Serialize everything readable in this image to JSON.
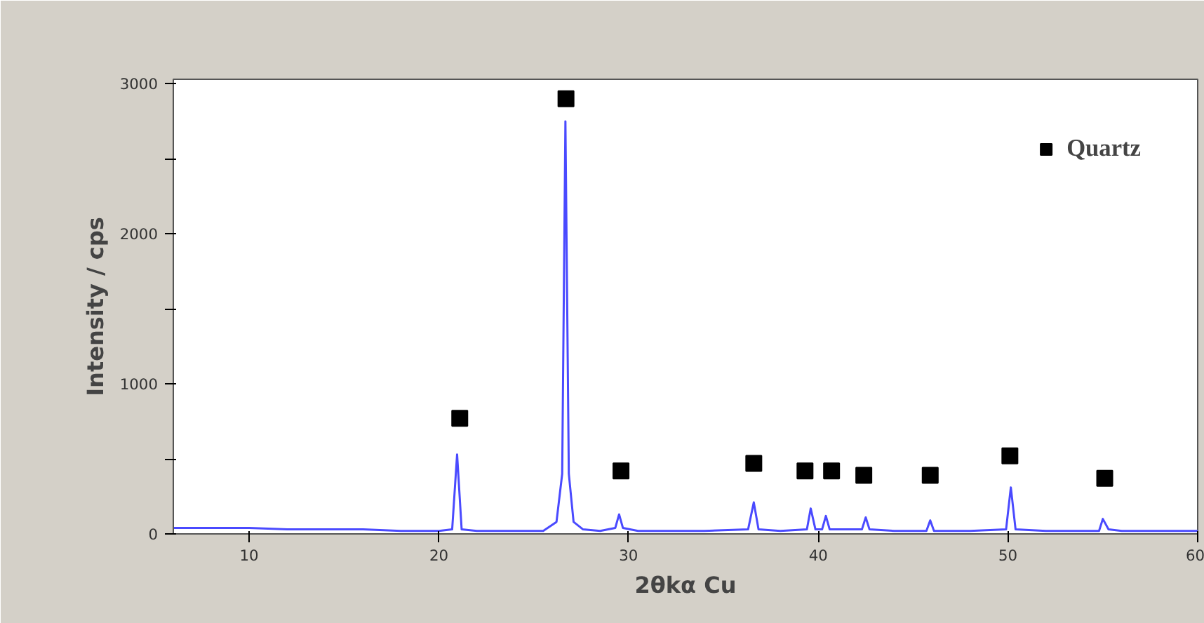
{
  "chart_data": {
    "type": "line",
    "xlabel": "2θkα Cu",
    "ylabel": "Intensity / cps",
    "xlim": [
      6,
      60
    ],
    "ylim": [
      0,
      3030
    ],
    "xticks": [
      10,
      20,
      30,
      40,
      50,
      60
    ],
    "yticks": [
      0,
      {
        "value": 500,
        "label": null
      },
      1000,
      {
        "value": 1500,
        "label": null
      },
      2000,
      {
        "value": 2500,
        "label": null
      },
      3000
    ],
    "grid": false,
    "legend": "top right",
    "series": [
      {
        "color": "#4a4aff",
        "marker": "none",
        "line_style": "solid",
        "x": [
          6,
          8,
          10,
          12,
          14,
          16,
          18,
          20,
          20.7,
          20.96,
          21.2,
          22,
          24,
          25.5,
          26.2,
          26.5,
          26.67,
          26.85,
          27.1,
          27.6,
          28.5,
          29.3,
          29.5,
          29.7,
          30.5,
          32,
          34,
          36.3,
          36.6,
          36.85,
          38,
          39.4,
          39.6,
          39.85,
          40.2,
          40.4,
          40.6,
          42.3,
          42.5,
          42.7,
          44,
          45.7,
          45.9,
          46.1,
          48,
          49.9,
          50.15,
          50.4,
          52,
          54.8,
          55.0,
          55.3,
          56,
          57.5,
          60
        ],
        "values": [
          40,
          40,
          40,
          30,
          30,
          30,
          20,
          20,
          30,
          530,
          30,
          20,
          20,
          20,
          80,
          400,
          2750,
          400,
          80,
          30,
          20,
          40,
          130,
          40,
          20,
          20,
          20,
          30,
          210,
          30,
          20,
          30,
          170,
          30,
          30,
          120,
          30,
          30,
          110,
          30,
          20,
          20,
          90,
          20,
          20,
          30,
          310,
          30,
          20,
          20,
          100,
          30,
          20,
          20,
          20
        ]
      },
      {
        "type": "scatter",
        "name": "Quartz",
        "color": "#000000",
        "marker": "square",
        "x": [
          21.1,
          26.7,
          29.6,
          36.6,
          39.3,
          40.7,
          42.4,
          45.9,
          50.1,
          55.1
        ],
        "values": [
          770,
          2900,
          420,
          470,
          420,
          420,
          390,
          390,
          520,
          370
        ]
      }
    ]
  }
}
